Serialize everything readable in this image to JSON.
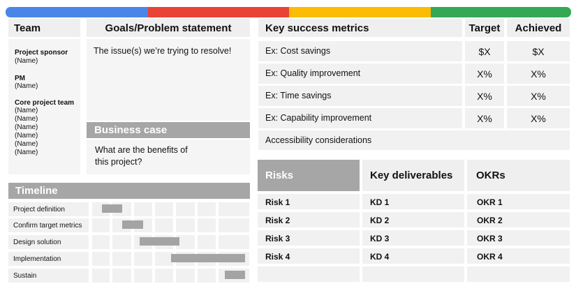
{
  "colors": {
    "blue": "#4a86e8",
    "red": "#ea4335",
    "yellow": "#fbbc04",
    "green": "#34a853",
    "light_cell": "#f1f1f1",
    "header_cell": "#efefef",
    "dark_header": "#a6a6a6",
    "gantt_bar": "#a4a4a4"
  },
  "team": {
    "title": "Team",
    "sponsor_label": "Project sponsor",
    "sponsor_name": "(Name)",
    "pm_label": "PM",
    "pm_name": "(Name)",
    "core_label": "Core project team",
    "core_names": [
      "(Name)",
      "(Name)",
      "(Name)",
      "(Name)",
      "(Name)",
      "(Name)"
    ]
  },
  "goals": {
    "title": "Goals/Problem statement",
    "text": "The issue(s) we’re trying to resolve!"
  },
  "business_case": {
    "title": "Business case",
    "text_line1": "What are the benefits of",
    "text_line2": "this project?"
  },
  "metrics": {
    "title": "Key success metrics",
    "target_header": "Target",
    "achieved_header": "Achieved",
    "rows": [
      {
        "label": "Ex: Cost savings",
        "target": "$X",
        "achieved": "$X"
      },
      {
        "label": "Ex: Quality improvement",
        "target": "X%",
        "achieved": "X%"
      },
      {
        "label": "Ex: Time savings",
        "target": "X%",
        "achieved": "X%"
      },
      {
        "label": "Ex: Capability improvement",
        "target": "X%",
        "achieved": "X%"
      }
    ],
    "accessibility": "Accessibility considerations"
  },
  "timeline": {
    "title": "Timeline",
    "phases": [
      {
        "label": "Project definition"
      },
      {
        "label": "Confirm target metrics"
      },
      {
        "label": "Design solution"
      },
      {
        "label": "Implementation"
      },
      {
        "label": "Sustain"
      }
    ]
  },
  "risks": {
    "title": "Risks",
    "items": [
      "Risk 1",
      "Risk 2",
      "Risk 3",
      "Risk 4"
    ]
  },
  "deliverables": {
    "title": "Key deliverables",
    "items": [
      "KD 1",
      "KD 2",
      "KD 3",
      "KD 4"
    ]
  },
  "okrs": {
    "title": "OKRs",
    "items": [
      "OKR 1",
      "OKR 2",
      "OKR 3",
      "OKR 4"
    ]
  }
}
